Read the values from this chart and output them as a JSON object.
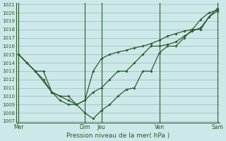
{
  "xlabel": "Pression niveau de la mer( hPa )",
  "bg_color": "#cce8e8",
  "grid_color": "#99bbbb",
  "line_color": "#2d5a2d",
  "ylim": [
    1007,
    1021
  ],
  "yticks": [
    1007,
    1008,
    1009,
    1010,
    1011,
    1012,
    1013,
    1014,
    1015,
    1016,
    1017,
    1018,
    1019,
    1020,
    1021
  ],
  "day_labels": [
    "Mer",
    "Dim",
    "Jeu",
    "Ven",
    "Sam"
  ],
  "day_x": [
    0,
    8,
    10,
    17,
    24
  ],
  "xmin": 0,
  "xmax": 24,
  "series1_x": [
    0,
    1,
    2,
    3,
    4,
    5,
    6,
    7,
    8,
    9,
    10,
    11,
    12,
    13,
    14,
    15,
    16,
    17,
    18,
    19,
    20,
    21,
    22,
    23,
    24
  ],
  "series1_y": [
    1015,
    1014,
    1013,
    1013,
    1010.5,
    1010,
    1010,
    1009,
    1008,
    1007.3,
    1008.3,
    1009,
    1010,
    1010.8,
    1011,
    1013,
    1013,
    1015.2,
    1016,
    1016,
    1017,
    1018,
    1018,
    1019.5,
    1020.5
  ],
  "series2_x": [
    0,
    1,
    2,
    3,
    4,
    5,
    6,
    7,
    8,
    9,
    10,
    11,
    12,
    13,
    14,
    15,
    16,
    17,
    18,
    19,
    20,
    21,
    22,
    23,
    24
  ],
  "series2_y": [
    1015,
    1014,
    1013,
    1012,
    1010.5,
    1009.5,
    1009,
    1009,
    1009.5,
    1010.5,
    1011,
    1012,
    1013,
    1013,
    1014,
    1015,
    1016,
    1016,
    1016.2,
    1016.5,
    1017.2,
    1017.8,
    1018.2,
    1019.5,
    1020.2
  ],
  "series3_x": [
    0,
    2,
    4,
    6,
    7,
    8,
    9,
    10,
    11,
    12,
    13,
    14,
    15,
    16,
    17,
    18,
    19,
    20,
    21,
    22,
    23,
    24
  ],
  "series3_y": [
    1015,
    1013,
    1010.5,
    1009.5,
    1009,
    1009.5,
    1013,
    1014.5,
    1015,
    1015.3,
    1015.5,
    1015.8,
    1016,
    1016.3,
    1016.7,
    1017.2,
    1017.5,
    1017.8,
    1018,
    1019.2,
    1020,
    1020.3
  ]
}
